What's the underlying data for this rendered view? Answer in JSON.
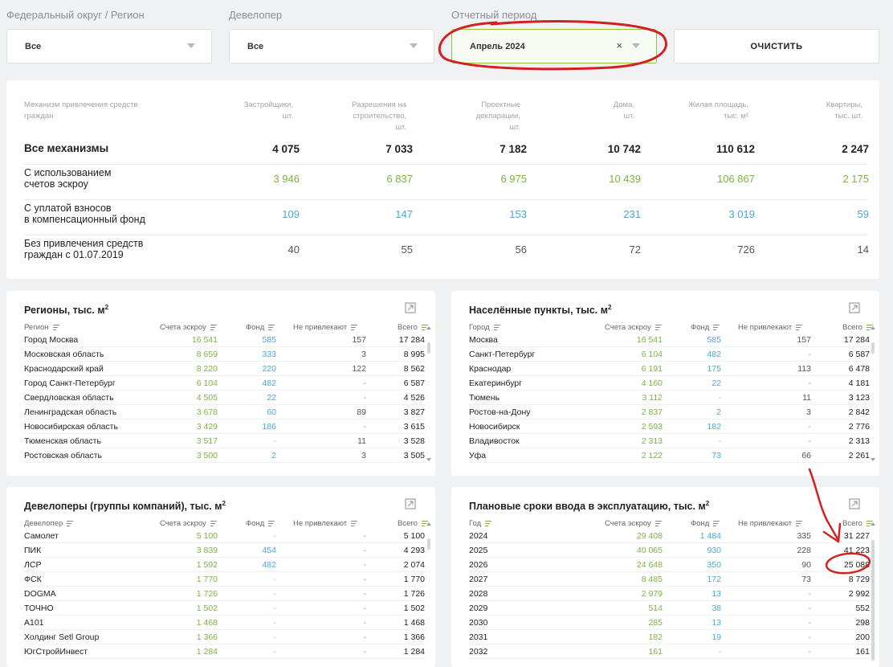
{
  "filters": {
    "region": {
      "label": "Федеральный округ / Регион",
      "value": "Все"
    },
    "developer": {
      "label": "Девелопер",
      "value": "Все"
    },
    "period": {
      "label": "Отчетный период",
      "value": "Апрель 2024",
      "clear": "×"
    },
    "clear_button": "ОЧИСТИТЬ"
  },
  "summary": {
    "headers": [
      [
        "Механизм привлечения средств",
        "граждан"
      ],
      [
        "Застройщики,",
        "шт."
      ],
      [
        "Разрешения на",
        "строительство,",
        "шт."
      ],
      [
        "Проектные",
        "декларации,",
        "шт."
      ],
      [
        "Дома,",
        "шт."
      ],
      [
        "Жилая площадь,",
        "тыс. м²"
      ],
      [
        "Квартиры,",
        "тыс. шт."
      ]
    ],
    "rows": [
      {
        "label": [
          "Все механизмы"
        ],
        "values": [
          "4 075",
          "7 033",
          "7 182",
          "10 742",
          "110 612",
          "2 247"
        ],
        "color": "bold"
      },
      {
        "label": [
          "С использованием",
          "счетов эскроу"
        ],
        "values": [
          "3 946",
          "6 837",
          "6 975",
          "10 439",
          "106 867",
          "2 175"
        ],
        "color": "green"
      },
      {
        "label": [
          "С уплатой взносов",
          "в компенсационный фонд"
        ],
        "values": [
          "109",
          "147",
          "153",
          "231",
          "3 019",
          "59"
        ],
        "color": "blue"
      },
      {
        "label": [
          "Без привлечения средств",
          "граждан с 01.07.2019"
        ],
        "values": [
          "40",
          "55",
          "56",
          "72",
          "726",
          "14"
        ],
        "color": "gray"
      }
    ]
  },
  "tables": {
    "regions": {
      "title": "Регионы, тыс. м",
      "title_sup": "2",
      "columns": [
        "Регион",
        "Счета эскроу",
        "Фонд",
        "Не привлекают",
        "Всего"
      ],
      "rows": [
        [
          "Город Москва",
          "16 541",
          "585",
          "157",
          "17 284"
        ],
        [
          "Московская область",
          "8 659",
          "333",
          "3",
          "8 995"
        ],
        [
          "Краснодарский край",
          "8 220",
          "220",
          "122",
          "8 562"
        ],
        [
          "Город Санкт-Петербург",
          "6 104",
          "482",
          "-",
          "6 587"
        ],
        [
          "Свердловская область",
          "4 505",
          "22",
          "-",
          "4 526"
        ],
        [
          "Ленинградская область",
          "3 678",
          "60",
          "89",
          "3 827"
        ],
        [
          "Новосибирская область",
          "3 429",
          "186",
          "-",
          "3 615"
        ],
        [
          "Тюменская область",
          "3 517",
          "-",
          "11",
          "3 528"
        ],
        [
          "Ростовская область",
          "3 500",
          "2",
          "3",
          "3 505"
        ]
      ]
    },
    "cities": {
      "title": "Населённые пункты, тыс. м",
      "title_sup": "2",
      "columns": [
        "Город",
        "Счета эскроу",
        "Фонд",
        "Не привлекают",
        "Всего"
      ],
      "rows": [
        [
          "Москва",
          "16 541",
          "585",
          "157",
          "17 284"
        ],
        [
          "Санкт-Петербург",
          "6 104",
          "482",
          "-",
          "6 587"
        ],
        [
          "Краснодар",
          "6 191",
          "175",
          "113",
          "6 478"
        ],
        [
          "Екатеринбург",
          "4 160",
          "22",
          "-",
          "4 181"
        ],
        [
          "Тюмень",
          "3 112",
          "-",
          "11",
          "3 123"
        ],
        [
          "Ростов-на-Дону",
          "2 837",
          "2",
          "3",
          "2 842"
        ],
        [
          "Новосибирск",
          "2 593",
          "182",
          "-",
          "2 776"
        ],
        [
          "Владивосток",
          "2 313",
          "-",
          "-",
          "2 313"
        ],
        [
          "Уфа",
          "2 122",
          "73",
          "66",
          "2 261"
        ]
      ]
    },
    "developers": {
      "title": "Девелоперы (группы компаний), тыс. м",
      "title_sup": "2",
      "columns": [
        "Девелопер",
        "Счета эскроу",
        "Фонд",
        "Не привлекают",
        "Всего"
      ],
      "rows": [
        [
          "Самолет",
          "5 100",
          "-",
          "-",
          "5 100"
        ],
        [
          "ПИК",
          "3 839",
          "454",
          "-",
          "4 293"
        ],
        [
          "ЛСР",
          "1 592",
          "482",
          "-",
          "2 074"
        ],
        [
          "ФСК",
          "1 770",
          "-",
          "-",
          "1 770"
        ],
        [
          "DOGMA",
          "1 726",
          "-",
          "-",
          "1 726"
        ],
        [
          "ТОЧНО",
          "1 502",
          "-",
          "-",
          "1 502"
        ],
        [
          "A101",
          "1 468",
          "-",
          "-",
          "1 468"
        ],
        [
          "Холдинг Setl Group",
          "1 366",
          "-",
          "-",
          "1 366"
        ],
        [
          "ЮгСтройИнвест",
          "1 284",
          "-",
          "-",
          "1 284"
        ]
      ]
    },
    "years": {
      "title": "Плановые сроки ввода в эксплуатацию, тыс. м",
      "title_sup": "2",
      "columns": [
        "Год",
        "Счета эскроу",
        "Фонд",
        "Не привлекают",
        "Всего"
      ],
      "rows": [
        [
          "2024",
          "29 408",
          "1 484",
          "335",
          "31 227"
        ],
        [
          "2025",
          "40 065",
          "930",
          "228",
          "41 223"
        ],
        [
          "2026",
          "24 648",
          "350",
          "90",
          "25 088"
        ],
        [
          "2027",
          "8 485",
          "172",
          "73",
          "8 729"
        ],
        [
          "2028",
          "2 979",
          "13",
          "-",
          "2 992"
        ],
        [
          "2029",
          "514",
          "38",
          "-",
          "552"
        ],
        [
          "2030",
          "285",
          "13",
          "-",
          "298"
        ],
        [
          "2031",
          "182",
          "19",
          "-",
          "200"
        ],
        [
          "2032",
          "161",
          "-",
          "-",
          "161"
        ]
      ]
    }
  },
  "colors": {
    "escrow": "#7cb342",
    "fund": "#4aa8d8",
    "annotation": "#d32020"
  }
}
